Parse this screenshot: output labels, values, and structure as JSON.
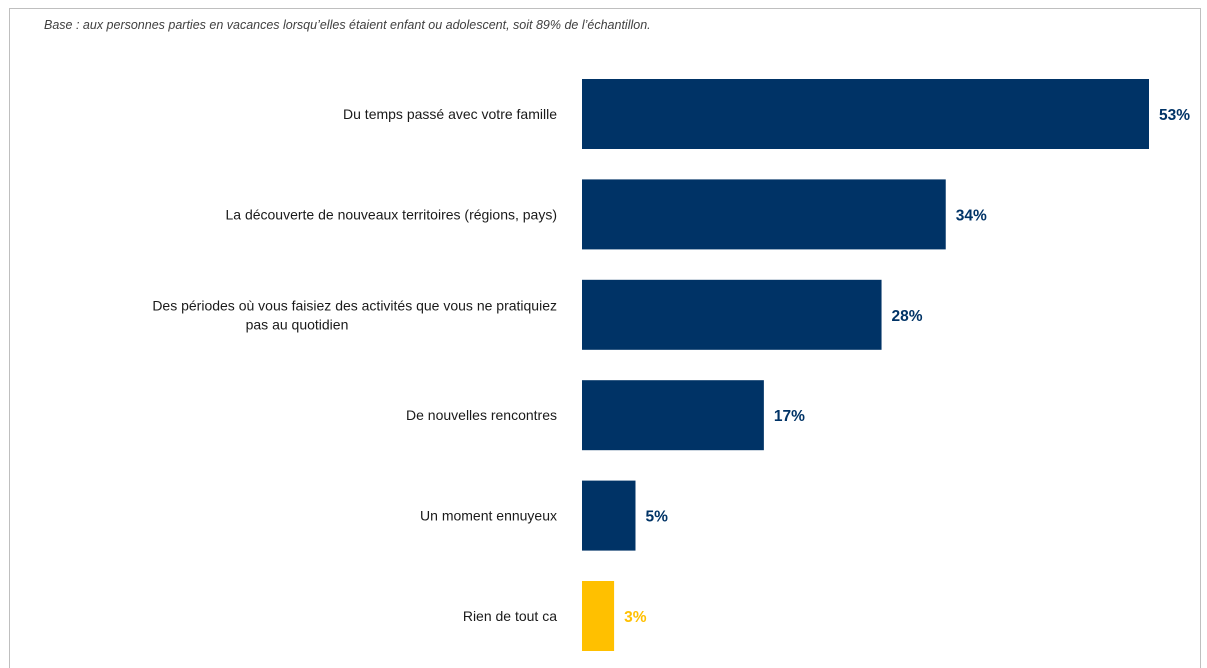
{
  "note": "Base : aux personnes parties en vacances lorsqu’elles étaient enfant ou adolescent, soit 89% de l’échantillon.",
  "colors": {
    "primary": "#003366",
    "highlight": "#FFC000"
  },
  "chart_data": {
    "type": "bar",
    "orientation": "horizontal",
    "categories": [
      [
        "Du temps passé avec votre famille"
      ],
      [
        "La découverte de nouveaux territoires (régions, pays)"
      ],
      [
        "Des périodes où vous faisiez des activités que vous ne pratiquiez",
        "pas au quotidien"
      ],
      [
        "De nouvelles rencontres"
      ],
      [
        "Un moment ennuyeux"
      ],
      [
        "Rien de tout ca"
      ]
    ],
    "values": [
      53,
      34,
      28,
      17,
      5,
      3
    ],
    "value_labels": [
      "53%",
      "34%",
      "28%",
      "17%",
      "5%",
      "3%"
    ],
    "bar_colors": [
      "#003366",
      "#003366",
      "#003366",
      "#003366",
      "#003366",
      "#FFC000"
    ],
    "title": "",
    "xlabel": "",
    "ylabel": "",
    "xlim": [
      0,
      53
    ],
    "grid": false,
    "legend": "none"
  }
}
